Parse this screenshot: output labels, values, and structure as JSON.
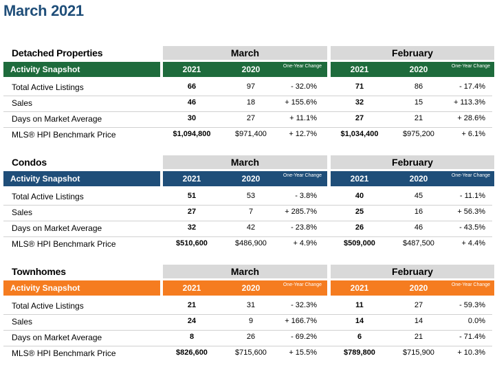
{
  "title": "March 2021",
  "column_labels": {
    "y1": "2021",
    "y2": "2020",
    "change": "One-Year Change",
    "snapshot": "Activity Snapshot"
  },
  "months": {
    "current": "March",
    "previous": "February"
  },
  "colors": {
    "detached": "#1e6b3c",
    "condos": "#1f4e79",
    "townhomes": "#f57c20"
  },
  "sections": [
    {
      "name": "Detached Properties",
      "rows": [
        {
          "label": "Total Active Listings",
          "cur": [
            "66",
            "97",
            "- 32.0%"
          ],
          "prev": [
            "71",
            "86",
            "- 17.4%"
          ]
        },
        {
          "label": "Sales",
          "cur": [
            "46",
            "18",
            "+ 155.6%"
          ],
          "prev": [
            "32",
            "15",
            "+ 113.3%"
          ]
        },
        {
          "label": "Days on Market Average",
          "cur": [
            "30",
            "27",
            "+ 11.1%"
          ],
          "prev": [
            "27",
            "21",
            "+ 28.6%"
          ]
        },
        {
          "label": "MLS® HPI Benchmark Price",
          "cur": [
            "$1,094,800",
            "$971,400",
            "+ 12.7%"
          ],
          "prev": [
            "$1,034,400",
            "$975,200",
            "+ 6.1%"
          ]
        }
      ]
    },
    {
      "name": "Condos",
      "rows": [
        {
          "label": "Total Active Listings",
          "cur": [
            "51",
            "53",
            "- 3.8%"
          ],
          "prev": [
            "40",
            "45",
            "- 11.1%"
          ]
        },
        {
          "label": "Sales",
          "cur": [
            "27",
            "7",
            "+ 285.7%"
          ],
          "prev": [
            "25",
            "16",
            "+ 56.3%"
          ]
        },
        {
          "label": "Days on Market Average",
          "cur": [
            "32",
            "42",
            "- 23.8%"
          ],
          "prev": [
            "26",
            "46",
            "- 43.5%"
          ]
        },
        {
          "label": "MLS® HPI Benchmark Price",
          "cur": [
            "$510,600",
            "$486,900",
            "+ 4.9%"
          ],
          "prev": [
            "$509,000",
            "$487,500",
            "+ 4.4%"
          ]
        }
      ]
    },
    {
      "name": "Townhomes",
      "rows": [
        {
          "label": "Total Active Listings",
          "cur": [
            "21",
            "31",
            "- 32.3%"
          ],
          "prev": [
            "11",
            "27",
            "- 59.3%"
          ]
        },
        {
          "label": "Sales",
          "cur": [
            "24",
            "9",
            "+ 166.7%"
          ],
          "prev": [
            "14",
            "14",
            "0.0%"
          ]
        },
        {
          "label": "Days on Market Average",
          "cur": [
            "8",
            "26",
            "- 69.2%"
          ],
          "prev": [
            "6",
            "21",
            "- 71.4%"
          ]
        },
        {
          "label": "MLS® HPI Benchmark Price",
          "cur": [
            "$826,600",
            "$715,600",
            "+ 15.5%"
          ],
          "prev": [
            "$789,800",
            "$715,900",
            "+ 10.3%"
          ]
        }
      ]
    }
  ]
}
